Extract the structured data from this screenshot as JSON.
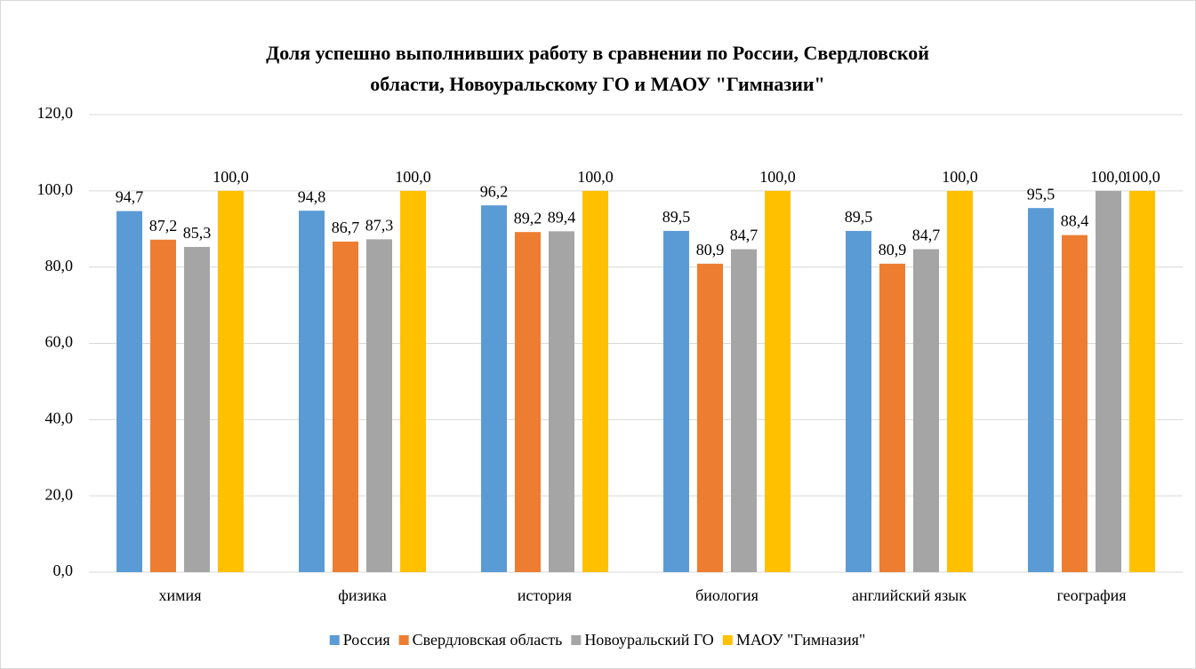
{
  "chart_data": {
    "type": "bar",
    "title": [
      "Доля успешно выполнивших работу в сравнении по России, Свердловской",
      "области, Новоуральскому ГО и МАОУ \"Гимназии\""
    ],
    "categories": [
      "химия",
      "физика",
      "история",
      "биология",
      "английский язык",
      "география"
    ],
    "series": [
      {
        "name": "Россия",
        "color": "#5b9bd5",
        "values": [
          94.7,
          94.8,
          96.2,
          89.5,
          89.5,
          95.5
        ],
        "value_labels": [
          "94,7",
          "94,8",
          "96,2",
          "89,5",
          "89,5",
          "95,5"
        ]
      },
      {
        "name": "Свердловская область",
        "color": "#ed7d31",
        "values": [
          87.2,
          86.7,
          89.2,
          80.9,
          80.9,
          88.4
        ],
        "value_labels": [
          "87,2",
          "86,7",
          "89,2",
          "80,9",
          "80,9",
          "88,4"
        ]
      },
      {
        "name": "Новоуральский ГО",
        "color": "#a5a5a5",
        "values": [
          85.3,
          87.3,
          89.4,
          84.7,
          84.7,
          100
        ],
        "value_labels": [
          "85,3",
          "87,3",
          "89,4",
          "84,7",
          "84,7",
          "100,0"
        ]
      },
      {
        "name": "МАОУ \"Гимназия\"",
        "color": "#ffc000",
        "values": [
          100,
          100,
          100,
          100,
          100,
          100
        ],
        "value_labels": [
          "100,0",
          "100,0",
          "100,0",
          "100,0",
          "100,0",
          "100,0"
        ]
      }
    ],
    "ylim": [
      0,
      120
    ],
    "yticks": [
      {
        "value": 0,
        "label": "0,0"
      },
      {
        "value": 20,
        "label": "20,0"
      },
      {
        "value": 40,
        "label": "40,0"
      },
      {
        "value": 60,
        "label": "60,0"
      },
      {
        "value": 80,
        "label": "80,0"
      },
      {
        "value": 100,
        "label": "100,0"
      },
      {
        "value": 120,
        "label": "120,0"
      }
    ],
    "grid": true,
    "legend": "bottom"
  }
}
